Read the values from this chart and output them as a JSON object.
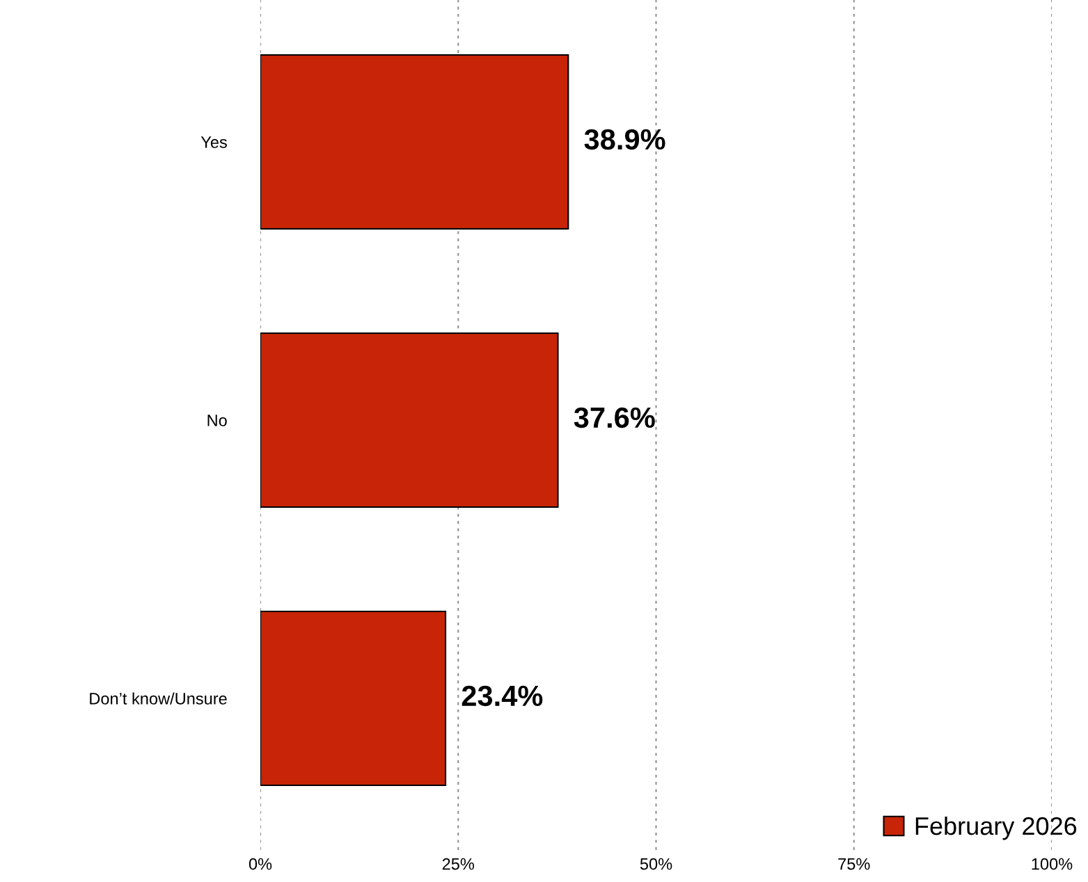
{
  "chart_data": {
    "type": "bar",
    "orientation": "horizontal",
    "categories": [
      "Yes",
      "No",
      "Don’t know/Unsure"
    ],
    "series": [
      {
        "name": "February 2026",
        "color": "#c72408",
        "values": [
          38.9,
          37.6,
          23.4
        ]
      }
    ],
    "value_labels": [
      "38.9%",
      "37.6%",
      "23.4%"
    ],
    "xlim": [
      0,
      100
    ],
    "xticks": [
      {
        "value": 0,
        "label": "0%"
      },
      {
        "value": 25,
        "label": "25%"
      },
      {
        "value": 50,
        "label": "50%"
      },
      {
        "value": 75,
        "label": "75%"
      },
      {
        "value": 100,
        "label": "100%"
      }
    ],
    "grid": "x",
    "legend": "bottom right"
  }
}
